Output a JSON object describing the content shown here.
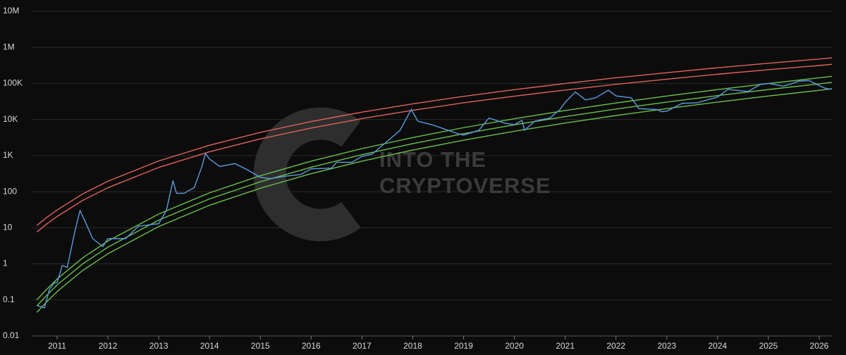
{
  "chart_data": {
    "type": "line",
    "log_y": true,
    "grid": true,
    "background": "#0c0c0c",
    "grid_color": "#2a2a2a",
    "watermark": [
      "INTO THE",
      "CRYPTOVERSE"
    ],
    "xlim": [
      2010.5,
      2026.25
    ],
    "xticks": [
      2011,
      2012,
      2013,
      2014,
      2015,
      2016,
      2017,
      2018,
      2019,
      2020,
      2021,
      2022,
      2023,
      2024,
      2025,
      2026
    ],
    "ylim": [
      0.01,
      10000000
    ],
    "yticks": [
      0.01,
      0.1,
      1,
      10,
      100,
      {
        "value": 1000,
        "label": "1K"
      },
      {
        "value": 10000,
        "label": "10K"
      },
      {
        "value": 100000,
        "label": "100K"
      },
      {
        "value": 1000000,
        "label": "1M"
      },
      {
        "value": 10000000,
        "label": "10M"
      }
    ],
    "series": [
      {
        "color": "#e0625c",
        "x": [
          2010.6,
          2010.8,
          2011,
          2011.5,
          2012,
          2013,
          2014,
          2015,
          2016,
          2017,
          2018,
          2019,
          2020,
          2021,
          2022,
          2023,
          2024,
          2025,
          2026,
          2026.25
        ],
        "values": [
          11.5,
          19.5,
          31,
          86,
          195,
          710,
          1940,
          4400,
          8800,
          16000,
          27200,
          43900,
          67100,
          99500,
          143000,
          199000,
          272000,
          363000,
          475000,
          512000
        ]
      },
      {
        "color": "#e0625c",
        "x": [
          2010.6,
          2010.8,
          2011,
          2011.5,
          2012,
          2013,
          2014,
          2015,
          2016,
          2017,
          2018,
          2019,
          2020,
          2021,
          2022,
          2023,
          2024,
          2025,
          2026,
          2026.25
        ],
        "values": [
          7.6,
          12.9,
          20.5,
          57,
          129,
          469,
          1280,
          2900,
          5800,
          10600,
          18000,
          29000,
          44300,
          65700,
          94400,
          131000,
          180000,
          240000,
          314000,
          338000
        ]
      },
      {
        "color": "#6abf4b",
        "x": [
          2010.6,
          2010.8,
          2011,
          2011.5,
          2012,
          2013,
          2014,
          2015,
          2016,
          2017,
          2018,
          2019,
          2020,
          2021,
          2022,
          2023,
          2024,
          2025,
          2026,
          2026.25
        ],
        "values": [
          0.1,
          0.2,
          0.38,
          1.45,
          4.3,
          24,
          93,
          277,
          700,
          1560,
          3150,
          5940,
          10500,
          17700,
          28700,
          44700,
          67600,
          99500,
          143000,
          157000
        ]
      },
      {
        "color": "#6abf4b",
        "x": [
          2010.6,
          2010.8,
          2011,
          2011.5,
          2012,
          2013,
          2014,
          2015,
          2016,
          2017,
          2018,
          2019,
          2020,
          2021,
          2022,
          2023,
          2024,
          2025,
          2026,
          2026.25
        ],
        "values": [
          0.068,
          0.136,
          0.26,
          0.99,
          2.9,
          16.3,
          63,
          188,
          476,
          1060,
          2140,
          4040,
          7140,
          12000,
          19500,
          30400,
          46000,
          67700,
          97200,
          107000
        ]
      },
      {
        "color": "#6abf4b",
        "x": [
          2010.6,
          2010.8,
          2011,
          2011.5,
          2012,
          2013,
          2014,
          2015,
          2016,
          2017,
          2018,
          2019,
          2020,
          2021,
          2022,
          2023,
          2024,
          2025,
          2026,
          2026.25
        ],
        "values": [
          0.045,
          0.09,
          0.17,
          0.65,
          1.9,
          10.8,
          42,
          125,
          315,
          700,
          1420,
          2670,
          4730,
          7970,
          12900,
          20100,
          30400,
          44800,
          64400,
          70700
        ]
      },
      {
        "color": "#5b9bdf",
        "x": [
          2010.6,
          2010.75,
          2010.85,
          2010.95,
          2011.0,
          2011.1,
          2011.2,
          2011.35,
          2011.45,
          2011.55,
          2011.7,
          2011.9,
          2012.0,
          2012.1,
          2012.35,
          2012.6,
          2012.8,
          2013.0,
          2013.15,
          2013.28,
          2013.35,
          2013.5,
          2013.7,
          2013.85,
          2013.92,
          2014.0,
          2014.2,
          2014.5,
          2014.75,
          2015.0,
          2015.2,
          2015.5,
          2015.8,
          2016.0,
          2016.4,
          2016.5,
          2016.8,
          2017.0,
          2017.2,
          2017.5,
          2017.75,
          2017.97,
          2018.1,
          2018.4,
          2018.9,
          2019.0,
          2019.3,
          2019.5,
          2019.8,
          2020.0,
          2020.15,
          2020.2,
          2020.4,
          2020.7,
          2020.9,
          2021.0,
          2021.2,
          2021.4,
          2021.6,
          2021.85,
          2022.0,
          2022.3,
          2022.45,
          2022.8,
          2022.9,
          2023.0,
          2023.3,
          2023.6,
          2023.8,
          2024.0,
          2024.2,
          2024.6,
          2024.85,
          2025.0,
          2025.3,
          2025.6,
          2025.8,
          2025.95,
          2026.1,
          2026.2,
          2026.25
        ],
        "values": [
          0.07,
          0.06,
          0.2,
          0.3,
          0.3,
          0.9,
          0.8,
          8,
          30,
          15,
          5,
          3,
          5,
          5,
          5,
          11,
          12,
          13,
          30,
          200,
          90,
          90,
          130,
          500,
          1150,
          800,
          500,
          600,
          400,
          250,
          230,
          270,
          300,
          430,
          450,
          650,
          650,
          950,
          1100,
          2500,
          5000,
          19000,
          9000,
          7000,
          4000,
          3700,
          5000,
          11000,
          8000,
          7200,
          9500,
          5000,
          9000,
          11000,
          19000,
          30000,
          58000,
          35000,
          40000,
          65000,
          45000,
          40000,
          20000,
          19000,
          16500,
          17000,
          28000,
          29000,
          35000,
          42000,
          68000,
          60000,
          95000,
          100000,
          84000,
          115000,
          120000,
          95000,
          75000,
          70000,
          72000
        ]
      }
    ]
  }
}
